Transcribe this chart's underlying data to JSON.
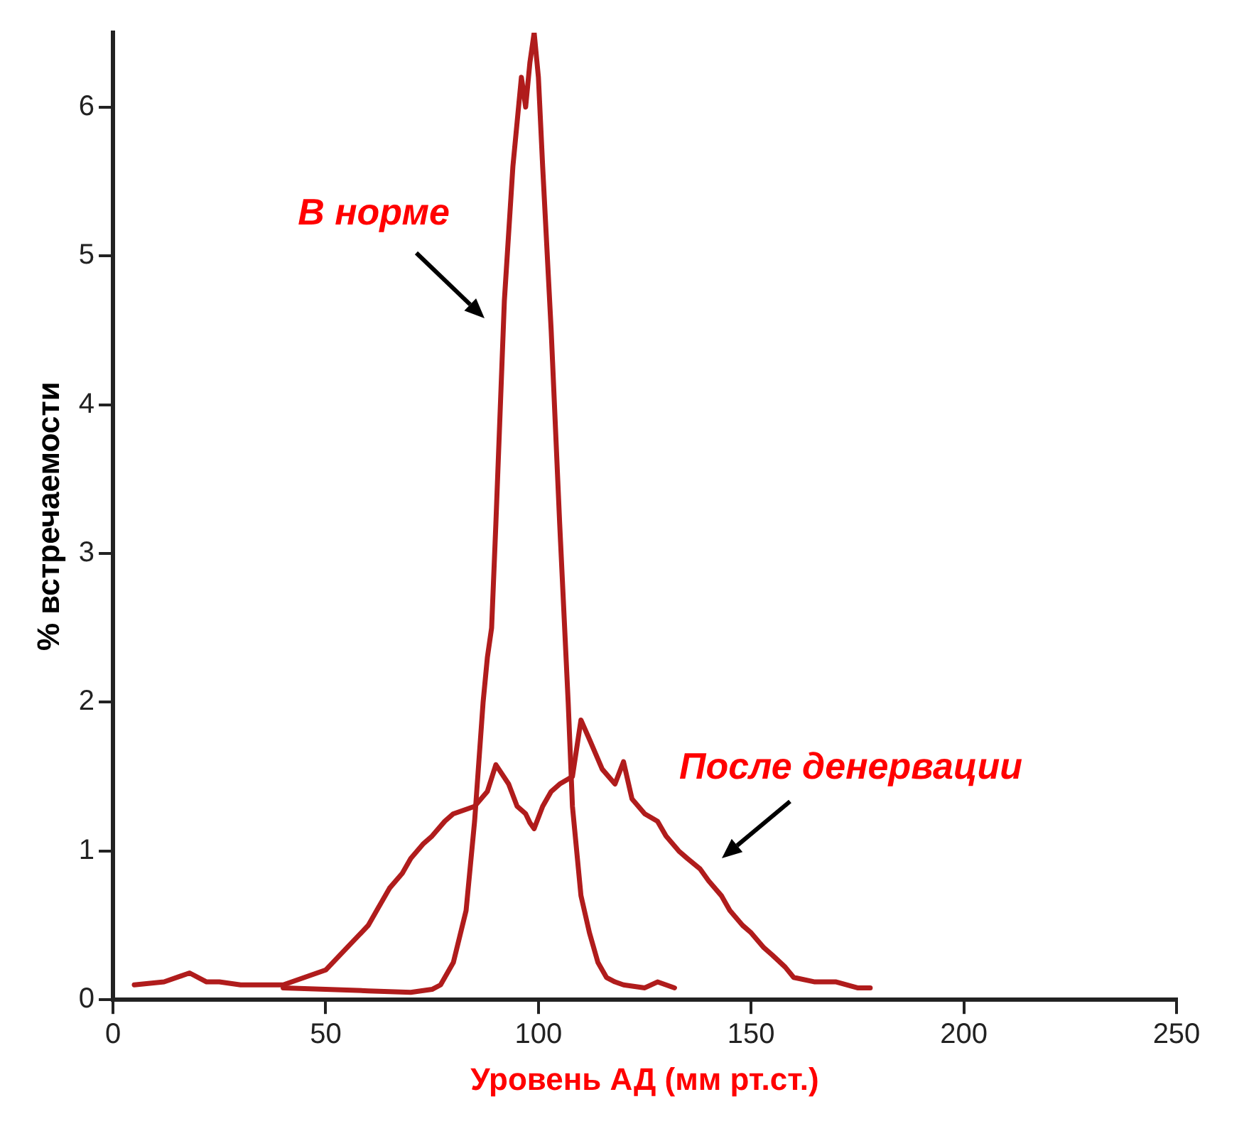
{
  "chart_data": {
    "type": "line",
    "xlabel": "Уровень АД (мм рт.ст.)",
    "ylabel": "% встречаемости",
    "xlim": [
      0,
      250
    ],
    "xticks": [
      0,
      50,
      100,
      150,
      200,
      250
    ],
    "ylim": [
      0,
      6.5
    ],
    "yticks": [
      0,
      1,
      2,
      3,
      4,
      5,
      6
    ],
    "grid": false,
    "legend": false,
    "marker": "none",
    "line_style": "solid",
    "series": [
      {
        "color": "#b01c1c",
        "x": [
          40,
          50,
          60,
          70,
          75,
          77,
          80,
          83,
          85,
          87,
          88,
          89,
          90,
          92,
          94,
          95,
          96,
          97,
          98,
          99,
          100,
          101,
          103,
          105,
          107,
          108,
          110,
          112,
          114,
          116,
          118,
          120,
          125,
          128,
          132
        ],
        "values": [
          0.08,
          0.07,
          0.06,
          0.05,
          0.07,
          0.1,
          0.25,
          0.6,
          1.2,
          2.0,
          2.3,
          2.5,
          3.2,
          4.7,
          5.6,
          5.9,
          6.2,
          6.0,
          6.3,
          6.5,
          6.2,
          5.6,
          4.5,
          3.2,
          2.0,
          1.3,
          0.7,
          0.45,
          0.25,
          0.15,
          0.12,
          0.1,
          0.08,
          0.12,
          0.08
        ]
      },
      {
        "color": "#b01c1c",
        "x": [
          5,
          12,
          18,
          22,
          25,
          30,
          35,
          40,
          45,
          50,
          55,
          60,
          62,
          65,
          68,
          70,
          73,
          75,
          78,
          80,
          85,
          88,
          90,
          93,
          95,
          97,
          98,
          99,
          101,
          103,
          105,
          108,
          110,
          112,
          115,
          118,
          120,
          122,
          125,
          128,
          130,
          133,
          135,
          138,
          140,
          143,
          145,
          148,
          150,
          153,
          155,
          158,
          160,
          165,
          170,
          175,
          178
        ],
        "values": [
          0.1,
          0.12,
          0.18,
          0.12,
          0.12,
          0.1,
          0.1,
          0.1,
          0.15,
          0.2,
          0.35,
          0.5,
          0.6,
          0.75,
          0.85,
          0.95,
          1.05,
          1.1,
          1.2,
          1.25,
          1.3,
          1.4,
          1.58,
          1.45,
          1.3,
          1.25,
          1.19,
          1.15,
          1.3,
          1.4,
          1.45,
          1.5,
          1.88,
          1.75,
          1.55,
          1.45,
          1.6,
          1.35,
          1.25,
          1.2,
          1.1,
          1.0,
          0.95,
          0.88,
          0.8,
          0.7,
          0.6,
          0.5,
          0.45,
          0.35,
          0.3,
          0.22,
          0.15,
          0.12,
          0.12,
          0.08,
          0.08
        ]
      }
    ],
    "annotations": [
      "В норме",
      "После денервации"
    ]
  }
}
